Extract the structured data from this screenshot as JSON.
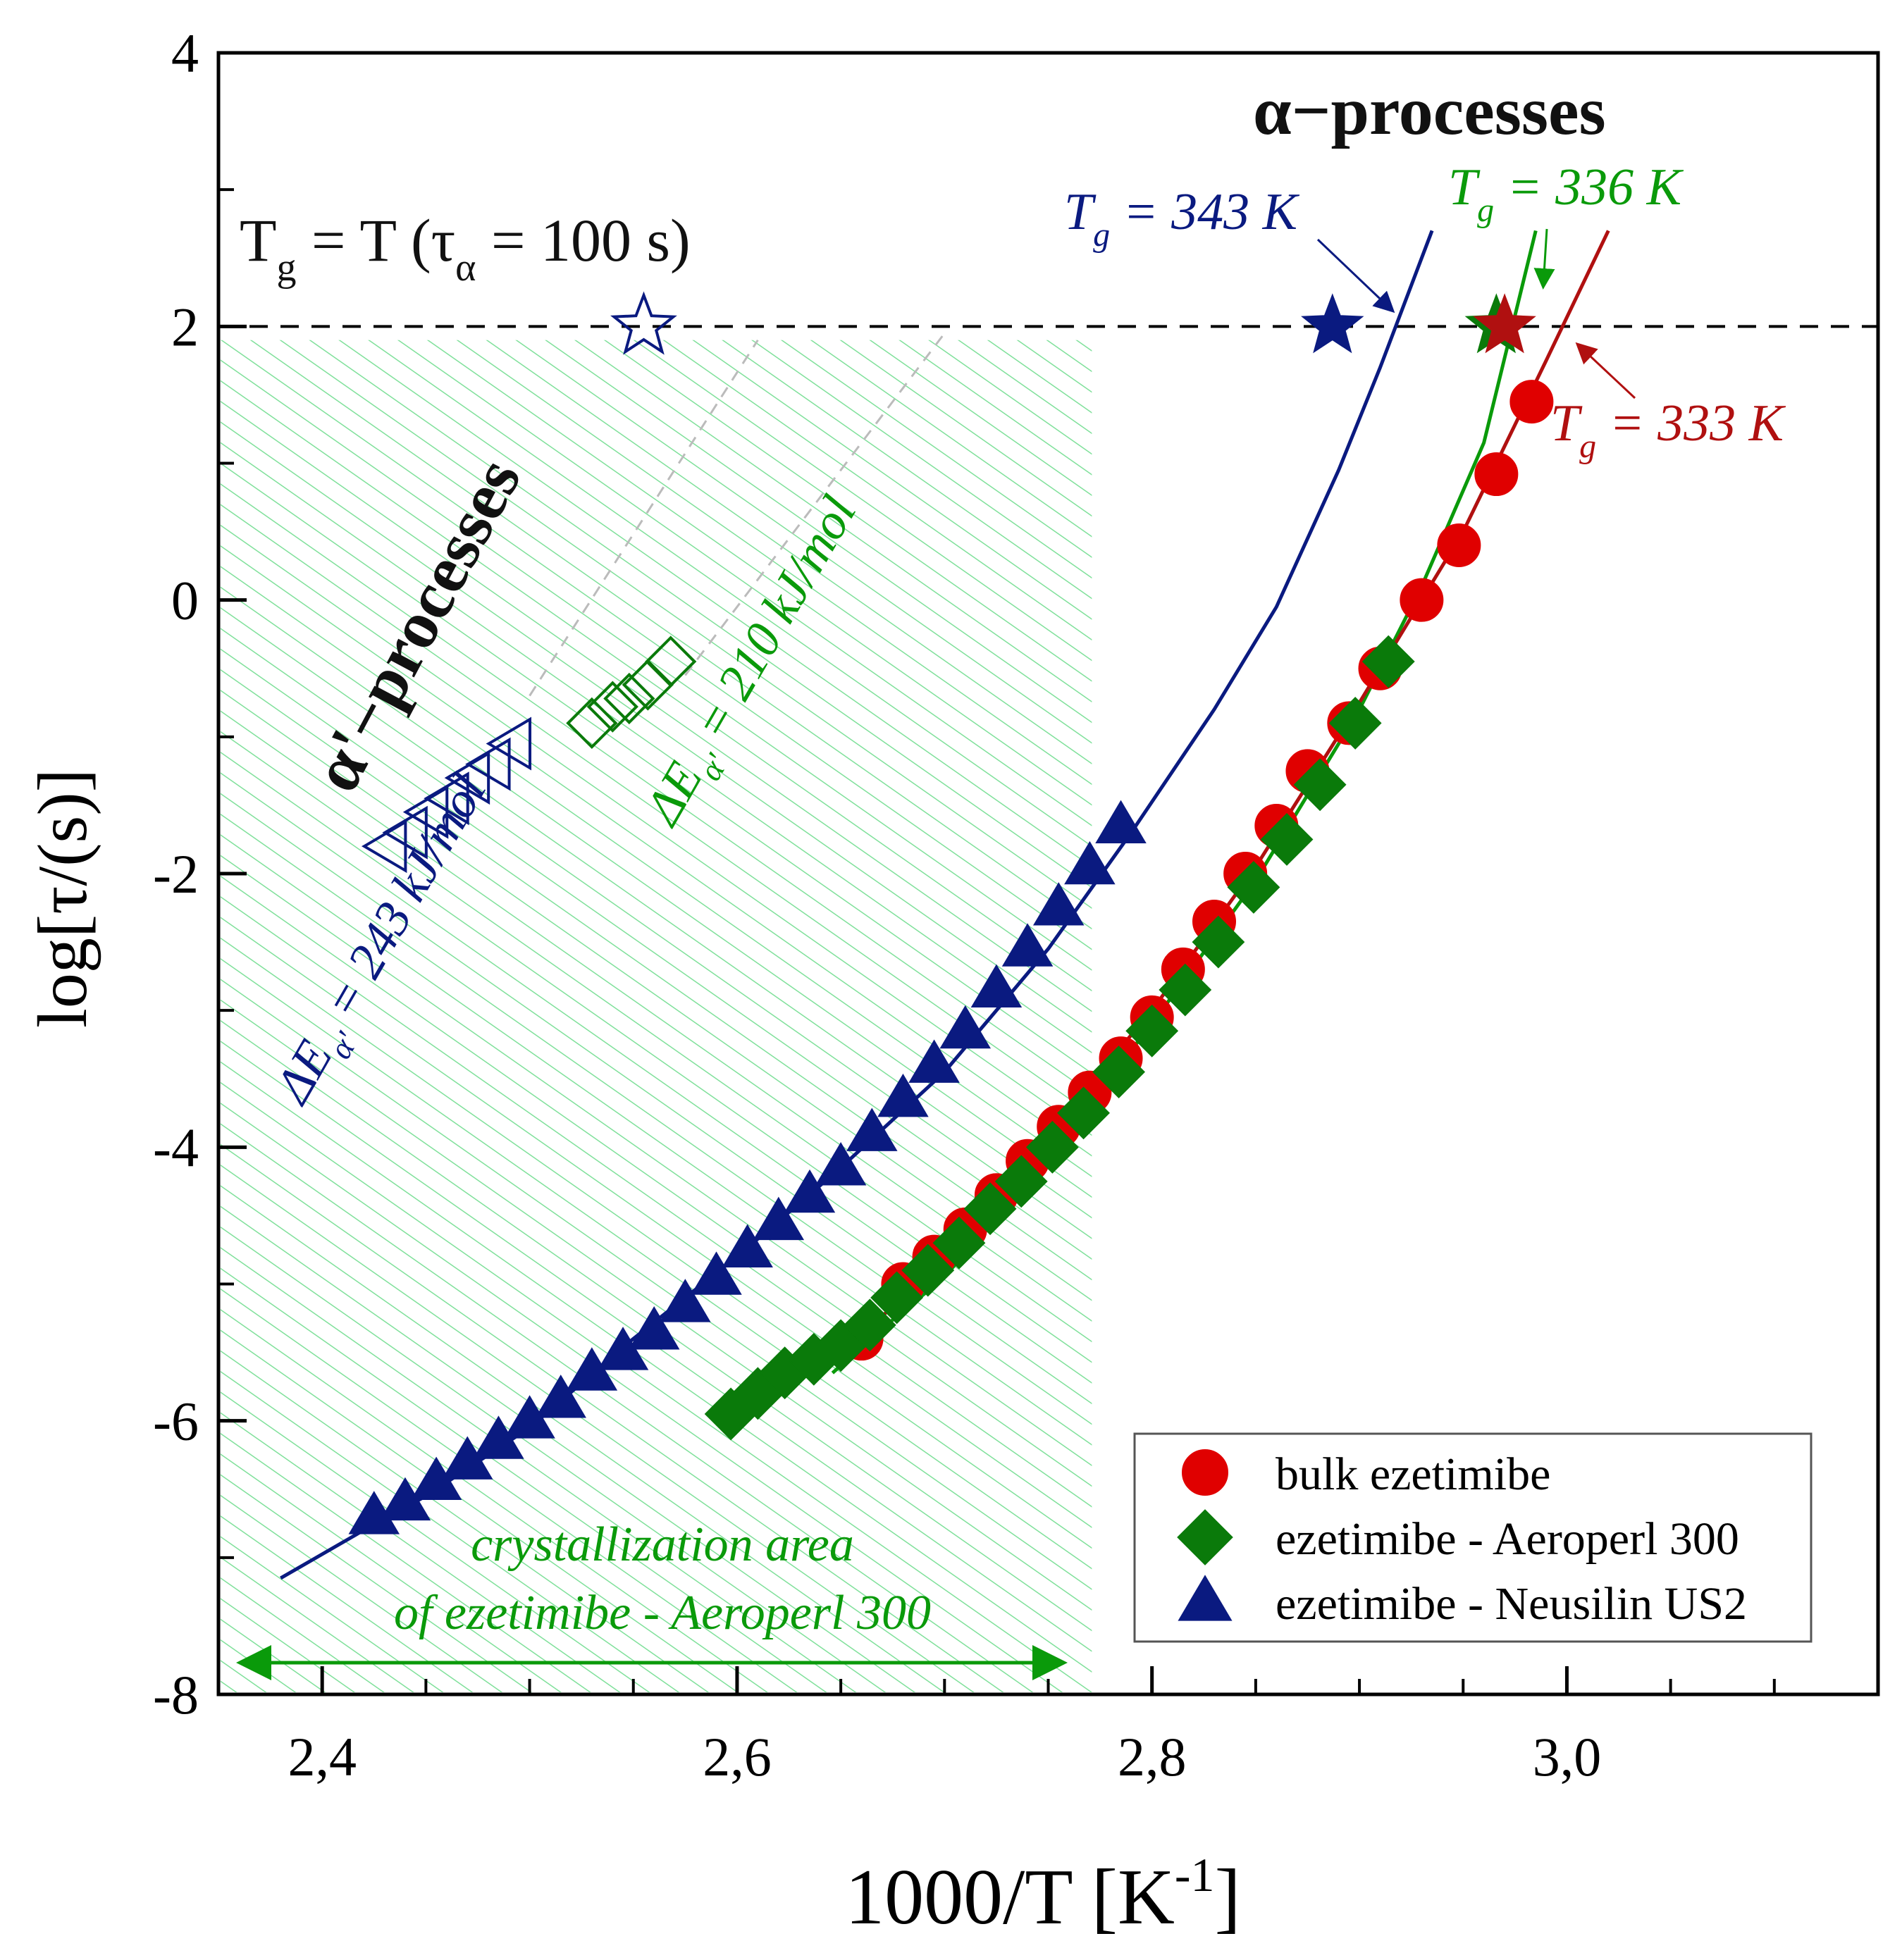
{
  "chart_data": {
    "type": "scatter",
    "xlabel": "1000/T [K",
    "xlabel_sup": "-1",
    "xlabel_end": "]",
    "ylabel": "log[τ/(s)]",
    "xlim": [
      2.35,
      3.15
    ],
    "ylim": [
      -8,
      4
    ],
    "x_ticks": [
      "2,4",
      "2,6",
      "2,8",
      "3,0"
    ],
    "x_tick_values": [
      2.4,
      2.6,
      2.8,
      3.0
    ],
    "y_ticks": [
      "-8",
      "-6",
      "-4",
      "-2",
      "0",
      "2",
      "4"
    ],
    "y_tick_values": [
      -8,
      -6,
      -4,
      -2,
      0,
      2,
      4
    ],
    "grid": false,
    "legend_position": "bottom-right",
    "series": [
      {
        "name": "bulk ezetimibe",
        "marker": "circle",
        "color": "#e00000",
        "x": [
          2.66,
          2.68,
          2.695,
          2.71,
          2.725,
          2.74,
          2.755,
          2.77,
          2.785,
          2.8,
          2.815,
          2.83,
          2.845,
          2.86,
          2.875,
          2.895,
          2.91,
          2.93,
          2.948,
          2.966,
          2.983
        ],
        "y": [
          -5.4,
          -5.0,
          -4.8,
          -4.6,
          -4.35,
          -4.1,
          -3.85,
          -3.6,
          -3.35,
          -3.05,
          -2.7,
          -2.35,
          -2.0,
          -1.65,
          -1.25,
          -0.9,
          -0.5,
          0.0,
          0.4,
          0.92,
          1.45
        ]
      },
      {
        "name": "ezetimibe - Aeroperl 300",
        "marker": "diamond",
        "color": "#0a7a0a",
        "x": [
          2.597,
          2.61,
          2.623,
          2.637,
          2.65,
          2.664,
          2.677,
          2.692,
          2.707,
          2.722,
          2.737,
          2.752,
          2.767,
          2.784,
          2.8,
          2.816,
          2.832,
          2.849,
          2.865,
          2.881,
          2.898,
          2.914
        ],
        "y": [
          -5.95,
          -5.8,
          -5.65,
          -5.55,
          -5.45,
          -5.3,
          -5.1,
          -4.9,
          -4.7,
          -4.45,
          -4.25,
          -4.0,
          -3.75,
          -3.45,
          -3.15,
          -2.85,
          -2.5,
          -2.1,
          -1.75,
          -1.35,
          -0.9,
          -0.45
        ]
      },
      {
        "name": "ezetimibe - Neusilin US2",
        "marker": "triangle",
        "color": "#0a1a80",
        "x": [
          2.425,
          2.44,
          2.455,
          2.47,
          2.485,
          2.5,
          2.515,
          2.53,
          2.545,
          2.56,
          2.575,
          2.59,
          2.605,
          2.62,
          2.635,
          2.65,
          2.665,
          2.68,
          2.695,
          2.71,
          2.725,
          2.74,
          2.755,
          2.77,
          2.785
        ],
        "y": [
          -6.7,
          -6.6,
          -6.45,
          -6.3,
          -6.15,
          -6.0,
          -5.85,
          -5.65,
          -5.5,
          -5.35,
          -5.15,
          -4.95,
          -4.75,
          -4.55,
          -4.35,
          -4.15,
          -3.9,
          -3.65,
          -3.4,
          -3.15,
          -2.85,
          -2.55,
          -2.25,
          -1.95,
          -1.65
        ]
      }
    ],
    "alpha_prime_points": {
      "neusilin_open_triangles": {
        "color": "#0a1a80",
        "x": [
          2.432,
          2.442,
          2.452,
          2.462,
          2.472,
          2.482,
          2.492
        ],
        "y": [
          -1.8,
          -1.7,
          -1.55,
          -1.45,
          -1.3,
          -1.2,
          -1.05
        ]
      },
      "aeroperl_open_squares": {
        "color": "#0a7a0a",
        "x": [
          2.53,
          2.54,
          2.548,
          2.557,
          2.568
        ],
        "y": [
          -0.9,
          -0.78,
          -0.72,
          -0.62,
          -0.45
        ]
      }
    },
    "fit_curves": {
      "neusilin": {
        "color": "#0a1a80",
        "x": [
          2.38,
          2.42,
          2.45,
          2.5,
          2.55,
          2.6,
          2.65,
          2.7,
          2.75,
          2.79,
          2.83,
          2.86,
          2.89,
          2.91,
          2.935
        ],
        "y": [
          -7.15,
          -6.8,
          -6.55,
          -6.05,
          -5.4,
          -4.8,
          -4.15,
          -3.45,
          -2.55,
          -1.7,
          -0.8,
          -0.05,
          0.95,
          1.7,
          2.7
        ]
      },
      "aeroperl": {
        "color": "#0a9a0a",
        "x": [
          2.646,
          2.672,
          2.7,
          2.75,
          2.8,
          2.85,
          2.9,
          2.93,
          2.96,
          2.985
        ],
        "y": [
          -5.65,
          -5.3,
          -4.95,
          -4.05,
          -3.1,
          -2.05,
          -0.8,
          0.1,
          1.15,
          2.7
        ]
      },
      "bulk": {
        "color": "#b01010",
        "x": [
          2.66,
          2.7,
          2.75,
          2.8,
          2.85,
          2.9,
          2.95,
          2.99,
          3.02
        ],
        "y": [
          -5.4,
          -4.75,
          -3.9,
          -3.0,
          -1.95,
          -0.75,
          0.5,
          1.75,
          2.7
        ]
      }
    },
    "extrapolation_lines": {
      "color": "#bbbbbb",
      "lines": [
        {
          "x": [
            2.5,
            2.61
          ],
          "y": [
            -0.7,
            1.9
          ]
        },
        {
          "x": [
            2.575,
            2.7
          ],
          "y": [
            -0.55,
            1.95
          ]
        }
      ]
    },
    "tg_markers": [
      {
        "label": "Tg = 343 K",
        "x": 2.887,
        "y": 2.0,
        "filled": true,
        "color": "#0a1a80"
      },
      {
        "label": "Tg = 336 K",
        "x": 2.966,
        "y": 2.0,
        "filled": true,
        "color": "#0a7a0a"
      },
      {
        "label": "Tg = 333 K",
        "x": 2.97,
        "y": 2.0,
        "filled": true,
        "color": "#b01010"
      },
      {
        "label": "open star",
        "x": 2.555,
        "y": 2.0,
        "filled": false,
        "color": "#0a1a80"
      }
    ],
    "reference_line": {
      "y": 2.0,
      "style": "dashed",
      "color": "#000000"
    },
    "crystallization_region": {
      "x": [
        2.35,
        2.77
      ],
      "y": [
        -8,
        1.9
      ],
      "color": "#66dd88"
    },
    "annotations": {
      "alpha_processes": "α−processes",
      "alpha_prime_processes": "α'−processes",
      "tg_definition_main": "T",
      "tg_definition_sub": "g",
      "tg_definition_mid": " = T (τ",
      "tg_definition_sub2": "α",
      "tg_definition_end": " = 100 s)",
      "tg_343": {
        "pre": "T",
        "sub": "g",
        "post": " = 343 K"
      },
      "tg_336": {
        "pre": "T",
        "sub": "g",
        "post": " = 336 K"
      },
      "tg_333": {
        "pre": "T",
        "sub": "g",
        "post": " = 333 K"
      },
      "de_243": {
        "pre": "ΔE",
        "sub": "α'",
        "post": " = 243 kJ/mol"
      },
      "de_210": {
        "pre": "ΔE",
        "sub": "α'",
        "post": " = 210 kJ/mol"
      },
      "cryst_line1": "crystallization area",
      "cryst_line2": "of ezetimibe - Aeroperl 300"
    }
  }
}
